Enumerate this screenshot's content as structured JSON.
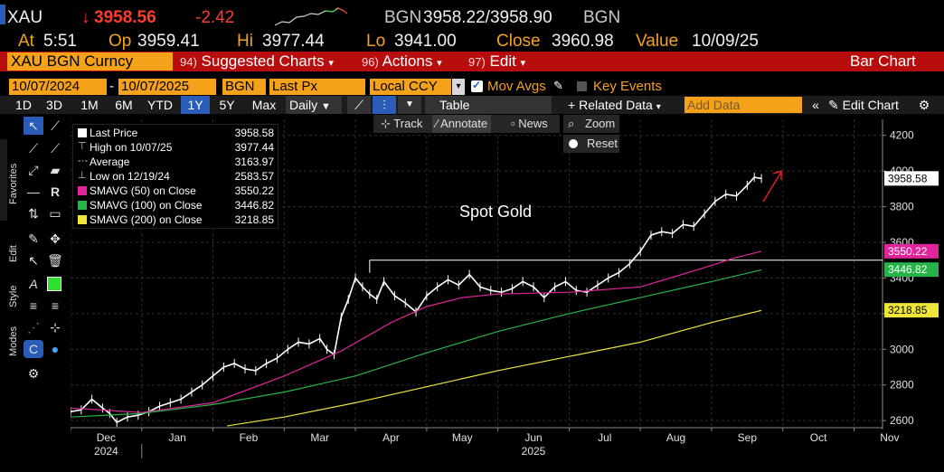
{
  "header": {
    "ticker": "XAU",
    "last_arrow": "↓",
    "last": "3958.56",
    "change": "-2.42",
    "bgn_label": "BGN",
    "bid_ask": "3958.22/3958.90",
    "bgn_label2": "BGN",
    "at_label": "At",
    "at_time": "5:51",
    "op_label": "Op",
    "op_value": "3959.41",
    "hi_label": "Hi",
    "hi_value": "3977.44",
    "lo_label": "Lo",
    "lo_value": "3941.00",
    "close_label": "Close",
    "close_value": "3960.98",
    "value_label": "Value",
    "value_date": "10/09/25"
  },
  "toolbar": {
    "security": "XAU BGN Curncy",
    "suggested_num": "94)",
    "suggested_label": "Suggested Charts",
    "actions_num": "96)",
    "actions_label": "Actions",
    "edit_num": "97)",
    "edit_label": "Edit",
    "chart_type": "Bar Chart"
  },
  "params": {
    "start_date": "10/07/2024",
    "end_date": "10/07/2025",
    "source": "BGN",
    "field": "Last Px",
    "currency": "Local CCY",
    "mov_avgs": "Mov Avgs",
    "key_events": "Key Events"
  },
  "periods": {
    "items": [
      "1D",
      "3D",
      "1M",
      "6M",
      "YTD",
      "1Y",
      "5Y",
      "Max"
    ],
    "active": "1Y",
    "frequency": "Daily",
    "table": "Table",
    "related_data": "Related Data",
    "add_data_placeholder": "Add Data",
    "edit_chart": "Edit Chart"
  },
  "chart_tools": {
    "track": "Track",
    "annotate": "Annotate",
    "news": "News",
    "zoom": "Zoom",
    "reset": "Reset"
  },
  "side_labels": {
    "favorites": "Favorites",
    "edit": "Edit",
    "style": "Style",
    "modes": "Modes"
  },
  "legend": [
    {
      "label": "Last Price",
      "value": "3958.58",
      "color": "#ffffff"
    },
    {
      "label": "High on 10/07/25",
      "value": "3977.44",
      "color": "#ffffff"
    },
    {
      "label": "Average",
      "value": "3163.97",
      "color": "#ffffff"
    },
    {
      "label": "Low on 12/19/24",
      "value": "2583.57",
      "color": "#ffffff"
    },
    {
      "label": "SMAVG (50)  on Close",
      "value": "3550.22",
      "color": "#e0259a"
    },
    {
      "label": "SMAVG (100)  on Close",
      "value": "3446.82",
      "color": "#27b34a"
    },
    {
      "label": "SMAVG (200)  on Close",
      "value": "3218.85",
      "color": "#f0e63a"
    }
  ],
  "chart_data": {
    "type": "line",
    "title": "Spot Gold",
    "x_labels": [
      "Dec",
      "Jan",
      "Feb",
      "Mar",
      "Apr",
      "May",
      "Jun",
      "Jul",
      "Aug",
      "Sep",
      "Oct",
      "Nov"
    ],
    "year_labels": [
      "2024",
      "2025"
    ],
    "y_ticks": [
      2600,
      2800,
      3000,
      3200,
      3400,
      3600,
      3800,
      4000,
      4200
    ],
    "ylim": [
      2560,
      4290
    ],
    "series": [
      {
        "name": "Last Price",
        "color": "#ffffff",
        "x": [
          0,
          0.15,
          0.3,
          0.45,
          0.55,
          0.65,
          0.8,
          0.95,
          1.1,
          1.25,
          1.4,
          1.55,
          1.7,
          1.85,
          2.0,
          2.15,
          2.3,
          2.45,
          2.6,
          2.75,
          2.9,
          3.05,
          3.2,
          3.35,
          3.5,
          3.6,
          3.7,
          3.8,
          3.9,
          4.0,
          4.1,
          4.2,
          4.3,
          4.4,
          4.55,
          4.7,
          4.85,
          5.0,
          5.15,
          5.3,
          5.45,
          5.6,
          5.75,
          5.9,
          6.05,
          6.2,
          6.35,
          6.5,
          6.65,
          6.8,
          6.95,
          7.1,
          7.25,
          7.4,
          7.55,
          7.7,
          7.85,
          8.0,
          8.15,
          8.3,
          8.45,
          8.6,
          8.75,
          8.9,
          9.05,
          9.2,
          9.35,
          9.5,
          9.6,
          9.7
        ],
        "values": [
          2650,
          2660,
          2720,
          2670,
          2640,
          2590,
          2620,
          2630,
          2650,
          2680,
          2700,
          2720,
          2760,
          2800,
          2850,
          2900,
          2920,
          2890,
          2880,
          2920,
          2950,
          3000,
          3040,
          3030,
          3060,
          3000,
          2970,
          3180,
          3280,
          3400,
          3350,
          3310,
          3280,
          3380,
          3300,
          3260,
          3210,
          3300,
          3350,
          3390,
          3360,
          3420,
          3350,
          3330,
          3320,
          3340,
          3380,
          3350,
          3290,
          3350,
          3380,
          3330,
          3320,
          3360,
          3400,
          3430,
          3480,
          3550,
          3640,
          3660,
          3650,
          3700,
          3690,
          3760,
          3830,
          3870,
          3860,
          3920,
          3965,
          3958
        ]
      },
      {
        "name": "SMAVG (50)",
        "color": "#e0259a",
        "x": [
          0,
          1,
          2,
          3,
          3.8,
          4.5,
          5,
          5.5,
          6,
          7,
          8,
          8.5,
          9,
          9.3,
          9.7
        ],
        "values": [
          2670,
          2645,
          2700,
          2850,
          2990,
          3150,
          3240,
          3290,
          3310,
          3320,
          3350,
          3410,
          3470,
          3510,
          3550
        ]
      },
      {
        "name": "SMAVG (100)",
        "color": "#27b34a",
        "x": [
          0,
          1,
          2,
          3,
          4,
          5,
          6,
          7,
          8,
          9,
          9.7
        ],
        "values": [
          2620,
          2640,
          2690,
          2760,
          2850,
          2980,
          3100,
          3200,
          3290,
          3380,
          3446
        ]
      },
      {
        "name": "SMAVG (200)",
        "color": "#f0e63a",
        "x": [
          2.2,
          3,
          4,
          5,
          6,
          7,
          8,
          9,
          9.7
        ],
        "values": [
          2570,
          2620,
          2700,
          2790,
          2880,
          2960,
          3040,
          3150,
          3218
        ]
      }
    ],
    "price_tags": [
      {
        "label": "3958.58",
        "value": 3958.58,
        "bg": "#ffffff",
        "fg": "#000000"
      },
      {
        "label": "3550.22",
        "value": 3550.22,
        "bg": "#e0259a",
        "fg": "#ffffff"
      },
      {
        "label": "3446.82",
        "value": 3446.82,
        "bg": "#27b34a",
        "fg": "#ffffff"
      },
      {
        "label": "3218.85",
        "value": 3218.85,
        "bg": "#f0e63a",
        "fg": "#000000"
      }
    ],
    "reference_level": 3500,
    "reference_start_x": 4.2
  },
  "colors": {
    "accent_orange": "#f5a11a",
    "toolbar_red": "#b80d0d",
    "active_blue": "#2a5cb8"
  }
}
